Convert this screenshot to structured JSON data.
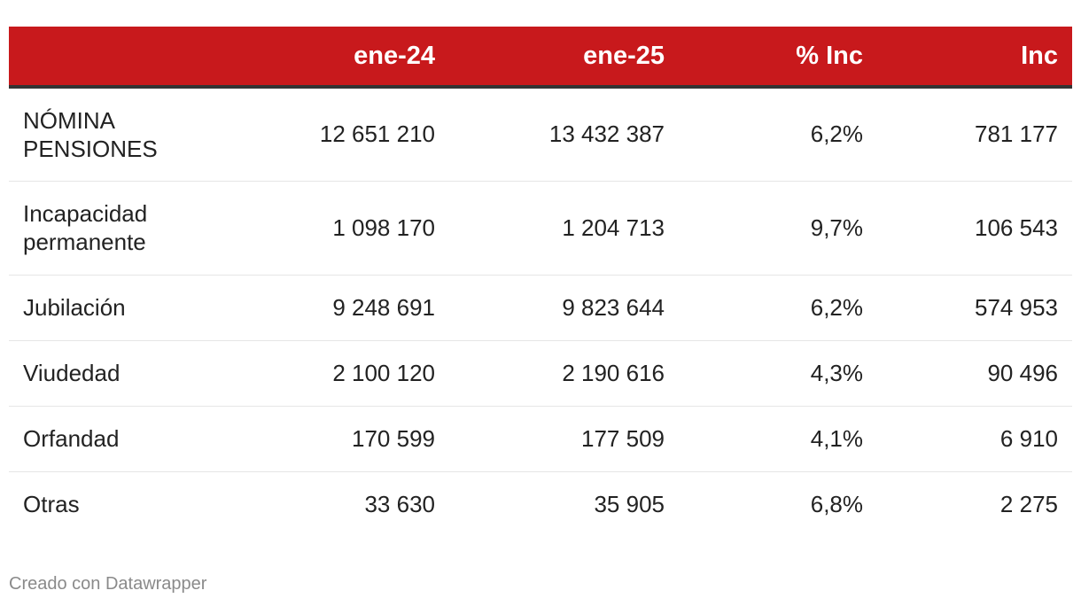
{
  "chart_data": {
    "type": "table",
    "columns": [
      "",
      "ene-24",
      "ene-25",
      "% Inc",
      "Inc"
    ],
    "rows": [
      {
        "label": "NÓMINA PENSIONES",
        "ene24": "12 651 210",
        "ene25": "13 432 387",
        "pct_inc": "6,2%",
        "inc": "781 177"
      },
      {
        "label": "Incapacidad permanente",
        "ene24": "1 098 170",
        "ene25": "1 204 713",
        "pct_inc": "9,7%",
        "inc": "106 543"
      },
      {
        "label": "Jubilación",
        "ene24": "9 248 691",
        "ene25": "9 823 644",
        "pct_inc": "6,2%",
        "inc": "574 953"
      },
      {
        "label": "Viudedad",
        "ene24": "2 100 120",
        "ene25": "2 190 616",
        "pct_inc": "4,3%",
        "inc": "90 496"
      },
      {
        "label": "Orfandad",
        "ene24": "170 599",
        "ene25": "177 509",
        "pct_inc": "4,1%",
        "inc": "6 910"
      },
      {
        "label": "Otras",
        "ene24": "33 630",
        "ene25": "35 905",
        "pct_inc": "6,8%",
        "inc": "2 275"
      }
    ],
    "header_color": "#c8191c"
  },
  "footer": {
    "credit": "Creado con Datawrapper"
  }
}
